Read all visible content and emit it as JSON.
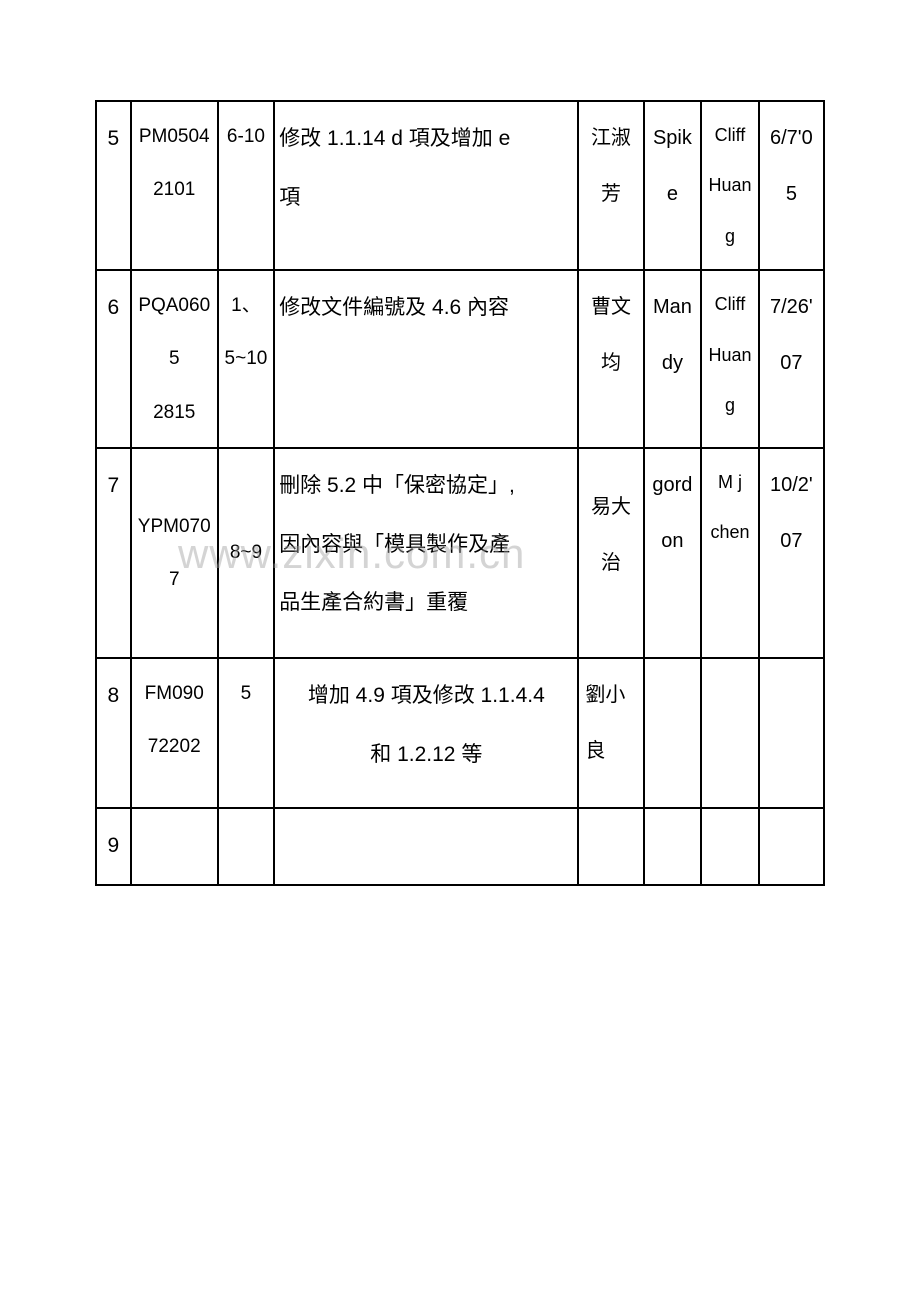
{
  "watermark": "www.zixin.com.cn",
  "table": {
    "border_color": "#000000",
    "rows": [
      {
        "seq": "5",
        "code": "PM0504\n2101",
        "page": "6-10",
        "desc": "修改 1.1.14 d 項及增加 e\n項",
        "person": "江淑\n芳",
        "rev1": "Spik\ne",
        "rev2": "Cliff\nHuang",
        "date": "6/7'0\n5"
      },
      {
        "seq": "6",
        "code": "PQA0605\n2815",
        "page": "1、\n5~10",
        "desc": "修改文件編號及 4.6 內容",
        "person": "曹文\n均",
        "rev1": "Man\ndy",
        "rev2": "Cliff\nHuang",
        "date": "7/26'\n07"
      },
      {
        "seq": "7",
        "code": "YPM0707",
        "page": "8~9",
        "desc": "刪除 5.2 中「保密協定」,\n因內容與「模具製作及產\n品生產合約書」重覆",
        "person": "易大\n治",
        "rev1": "gord\non",
        "rev2": "M j\nchen",
        "date": "10/2'\n07"
      },
      {
        "seq": "8",
        "code": "FM090\n72202",
        "page": "5",
        "desc": "增加 4.9 項及修改 1.1.4.4\n和 1.2.12 等",
        "person": "劉小\n良",
        "rev1": "",
        "rev2": "",
        "date": ""
      },
      {
        "seq": "9",
        "code": "",
        "page": "",
        "desc": "",
        "person": "",
        "rev1": "",
        "rev2": "",
        "date": ""
      }
    ]
  }
}
